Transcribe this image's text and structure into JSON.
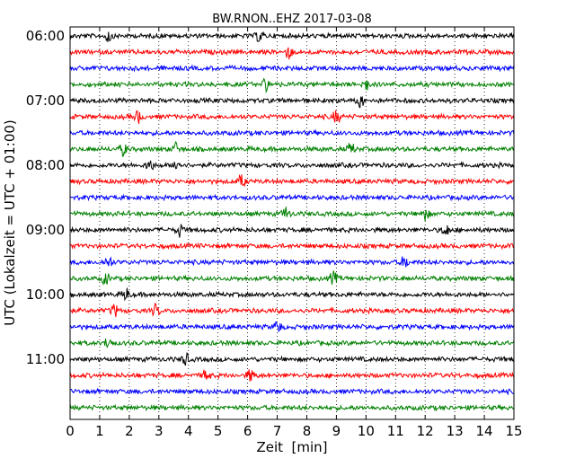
{
  "chart_data": {
    "type": "line",
    "title": "BW.RNON..EHZ 2017-03-08",
    "xlabel": "Zeit  [min]",
    "ylabel": "UTC (Lokalzeit = UTC + 01:00)",
    "xlim": [
      0,
      15
    ],
    "x_ticks": [
      "0",
      "1",
      "2",
      "3",
      "4",
      "5",
      "6",
      "7",
      "8",
      "9",
      "10",
      "11",
      "12",
      "13",
      "14",
      "15"
    ],
    "y_ticks": [
      "06:00",
      "07:00",
      "08:00",
      "09:00",
      "10:00",
      "11:00"
    ],
    "grid": "vertical dotted",
    "trace_colors": [
      "#000000",
      "#ff0000",
      "#0000ff",
      "#008000"
    ],
    "trace_start_times": [
      "06:00",
      "06:15",
      "06:30",
      "06:45",
      "07:00",
      "07:15",
      "07:30",
      "07:45",
      "08:00",
      "08:15",
      "08:30",
      "08:45",
      "09:00",
      "09:15",
      "09:30",
      "09:45",
      "10:00",
      "10:15",
      "10:30",
      "10:45",
      "11:00",
      "11:15",
      "11:30",
      "11:45"
    ],
    "events": [
      [
        1.3,
        6.4
      ],
      [
        7.4
      ],
      [],
      [
        6.6,
        10.0
      ],
      [
        9.8
      ],
      [
        2.3,
        9.0
      ],
      [],
      [
        1.8,
        3.6,
        9.5
      ],
      [
        2.7,
        3.6
      ],
      [
        5.8
      ],
      [],
      [
        7.3,
        12.0
      ],
      [
        3.7,
        12.7
      ],
      [],
      [
        1.3,
        11.3
      ],
      [
        1.2,
        8.9
      ],
      [
        1.9
      ],
      [
        1.5,
        2.9
      ],
      [
        7.0
      ],
      [
        1.3
      ],
      [
        3.9
      ],
      [
        4.6,
        6.1
      ],
      [],
      []
    ]
  }
}
